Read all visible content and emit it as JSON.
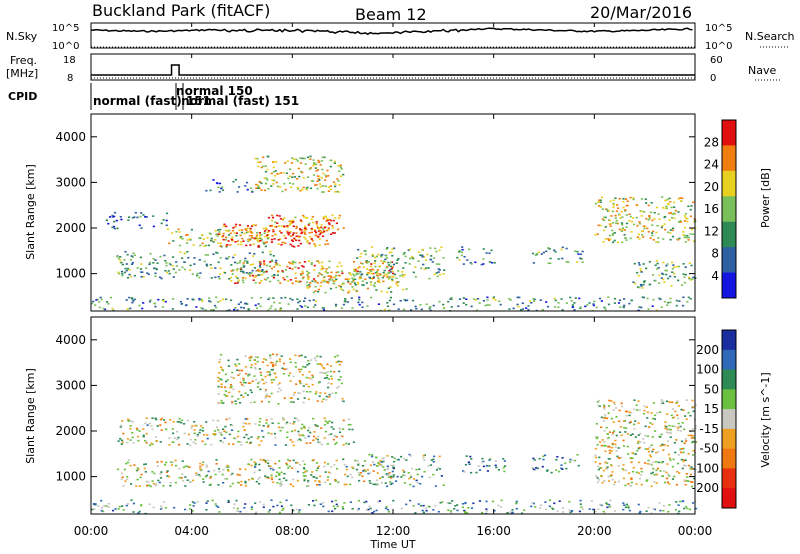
{
  "header": {
    "site": "Buckland Park (fitACF)",
    "beam": "Beam 12",
    "date": "20/Mar/2016"
  },
  "nsky_panel": {
    "left_label": "N.Sky",
    "right_label": "N.Search",
    "left_ticks": [
      "10^5",
      "10^0"
    ],
    "right_ticks": [
      "10^5",
      "10^0"
    ]
  },
  "freq_panel": {
    "left_label_line1": "Freq.",
    "left_label_line2": "[MHz]",
    "right_label": "Nave",
    "left_ticks": [
      "18",
      "8"
    ],
    "right_ticks": [
      "60",
      "0"
    ]
  },
  "cpid": {
    "label": "CPID",
    "modes": [
      {
        "text": "normal (fast) 151",
        "start_hour": 0.0,
        "row": 1
      },
      {
        "text": "normal 150",
        "start_hour": 3.3,
        "row": 0
      },
      {
        "text": "normal (fast) 151",
        "start_hour": 3.5,
        "row": 1
      }
    ]
  },
  "power_panel": {
    "ylabel": "Slant Range [km]",
    "yticks": [
      "1000",
      "2000",
      "3000",
      "4000"
    ],
    "colorbar_label": "Power [dB]",
    "colorbar_ticks": [
      "4",
      "8",
      "12",
      "16",
      "20",
      "24",
      "28"
    ],
    "colors": [
      "#1414e0",
      "#2e5fa0",
      "#2e8a55",
      "#7ac05a",
      "#e8d020",
      "#f07d10",
      "#e01010"
    ]
  },
  "velocity_panel": {
    "ylabel": "Slant Range [km]",
    "yticks": [
      "1000",
      "2000",
      "3000",
      "4000"
    ],
    "colorbar_label": "Velocity [m s^-1]",
    "colorbar_ticks": [
      "200",
      "100",
      "50",
      "15",
      "-15",
      "-50",
      "-100",
      "-200"
    ],
    "colors": [
      "#1a2ea0",
      "#2e6ab8",
      "#2e8a55",
      "#6cc040",
      "#c8c8c0",
      "#f0a020",
      "#f07810",
      "#e83010",
      "#e01010"
    ]
  },
  "xaxis": {
    "ticks": [
      "00:00",
      "04:00",
      "08:00",
      "12:00",
      "16:00",
      "20:00",
      "00:00"
    ],
    "label": "Time UT"
  },
  "chart_data": {
    "type": "heatmap",
    "title": "Buckland Park (fitACF)",
    "x_range_hours": [
      0,
      24
    ],
    "y_range_km": [
      180,
      4500
    ],
    "xlabel": "Time UT",
    "ylabel": "Slant Range [km]",
    "freq_mhz": {
      "baseline": 10,
      "spike": {
        "start_hour": 3.2,
        "end_hour": 3.5,
        "value": 15
      }
    },
    "power_regions": [
      {
        "t0": 0.0,
        "t1": 24.0,
        "r0": 200,
        "r1": 500,
        "level": 0.35
      },
      {
        "t0": 0.5,
        "t1": 3.0,
        "r0": 2000,
        "r1": 2400,
        "level": 0.25
      },
      {
        "t0": 1.0,
        "t1": 7.5,
        "r0": 900,
        "r1": 1500,
        "level": 0.4
      },
      {
        "t0": 3.0,
        "t1": 7.0,
        "r0": 1600,
        "r1": 2000,
        "level": 0.55
      },
      {
        "t0": 5.0,
        "t1": 9.5,
        "r0": 1600,
        "r1": 2100,
        "level": 0.85
      },
      {
        "t0": 7.0,
        "t1": 10.0,
        "r0": 1900,
        "r1": 2300,
        "level": 0.8
      },
      {
        "t0": 6.5,
        "t1": 10.0,
        "r0": 2800,
        "r1": 3600,
        "level": 0.6
      },
      {
        "t0": 4.5,
        "t1": 6.5,
        "r0": 2800,
        "r1": 3100,
        "level": 0.25
      },
      {
        "t0": 5.5,
        "t1": 12.0,
        "r0": 800,
        "r1": 1300,
        "level": 0.7
      },
      {
        "t0": 8.5,
        "t1": 12.5,
        "r0": 600,
        "r1": 1100,
        "level": 0.6
      },
      {
        "t0": 10.5,
        "t1": 14.0,
        "r0": 900,
        "r1": 1600,
        "level": 0.45
      },
      {
        "t0": 14.5,
        "t1": 16.0,
        "r0": 1200,
        "r1": 1600,
        "level": 0.35
      },
      {
        "t0": 17.5,
        "t1": 19.5,
        "r0": 1200,
        "r1": 1600,
        "level": 0.35
      },
      {
        "t0": 20.0,
        "t1": 24.0,
        "r0": 1700,
        "r1": 2700,
        "level": 0.6
      },
      {
        "t0": 21.5,
        "t1": 24.0,
        "r0": 700,
        "r1": 1300,
        "level": 0.45
      }
    ],
    "velocity_regions": [
      {
        "t0": 0.0,
        "t1": 24.0,
        "r0": 200,
        "r1": 500,
        "level": 0.3
      },
      {
        "t0": 1.0,
        "t1": 10.5,
        "r0": 1700,
        "r1": 2300,
        "level": 0.45
      },
      {
        "t0": 1.0,
        "t1": 12.0,
        "r0": 800,
        "r1": 1400,
        "level": 0.45
      },
      {
        "t0": 5.0,
        "t1": 10.0,
        "r0": 2600,
        "r1": 3700,
        "level": 0.5
      },
      {
        "t0": 11.0,
        "t1": 14.0,
        "r0": 800,
        "r1": 1500,
        "level": 0.35
      },
      {
        "t0": 14.5,
        "t1": 16.5,
        "r0": 1100,
        "r1": 1500,
        "level": 0.3
      },
      {
        "t0": 17.5,
        "t1": 19.5,
        "r0": 1100,
        "r1": 1500,
        "level": 0.3
      },
      {
        "t0": 20.0,
        "t1": 24.0,
        "r0": 800,
        "r1": 2700,
        "level": 0.5
      }
    ]
  }
}
